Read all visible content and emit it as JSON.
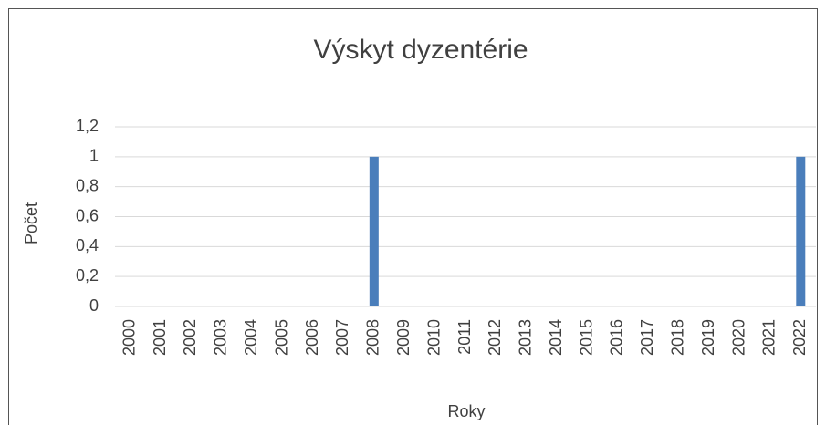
{
  "chart_data": {
    "type": "bar",
    "title": "Výskyt dyzentérie",
    "x_label": "Roky",
    "y_label": "Počet",
    "categories": [
      "2000",
      "2001",
      "2002",
      "2003",
      "2004",
      "2005",
      "2006",
      "2007",
      "2008",
      "2009",
      "2010",
      "2011",
      "2012",
      "2013",
      "2014",
      "2015",
      "2016",
      "2017",
      "2018",
      "2019",
      "2020",
      "2021",
      "2022"
    ],
    "values": [
      0,
      0,
      0,
      0,
      0,
      0,
      0,
      0,
      1,
      0,
      0,
      0,
      0,
      0,
      0,
      0,
      0,
      0,
      0,
      0,
      0,
      0,
      1
    ],
    "color": "#4a7ebb",
    "ylim": [
      0,
      1.2
    ],
    "yticks": [
      0,
      {
        "value": 0.2,
        "label": "0,2"
      },
      {
        "value": 0.4,
        "label": "0,4"
      },
      {
        "value": 0.6,
        "label": "0,6"
      },
      {
        "value": 0.8,
        "label": "0,8"
      },
      1,
      {
        "value": 1.2,
        "label": "1,2"
      }
    ],
    "grid": true
  }
}
